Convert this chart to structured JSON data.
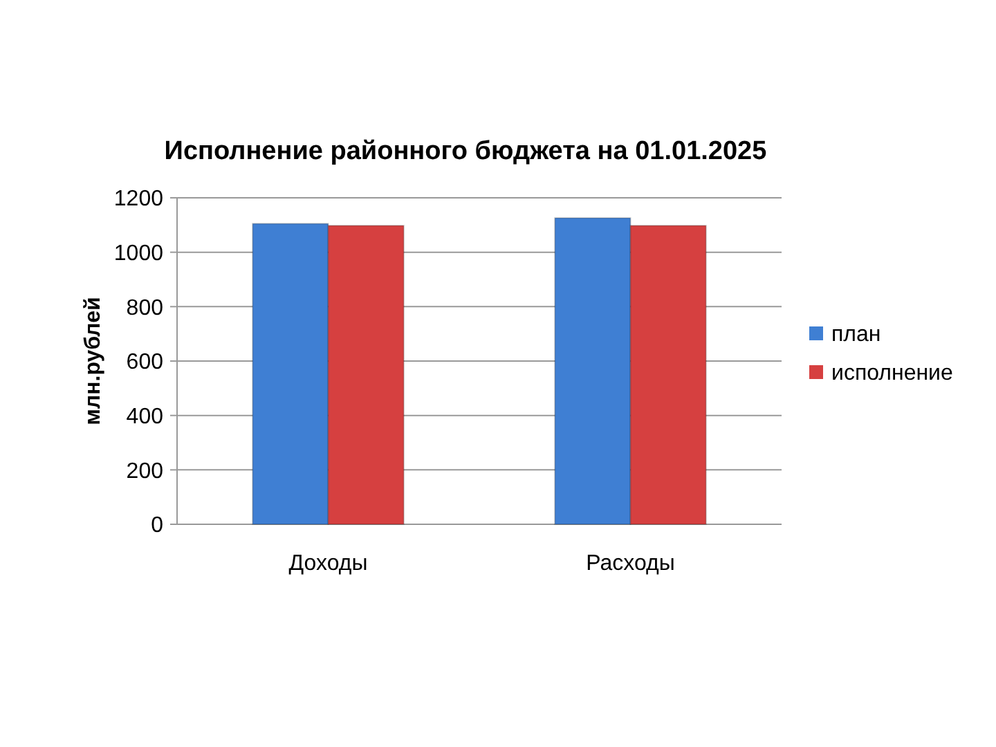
{
  "chart_data": {
    "type": "bar",
    "title": "Исполнение районного бюджета на 01.01.2025",
    "ylabel": "млн.рублей",
    "categories": [
      "Доходы",
      "Расходы"
    ],
    "series": [
      {
        "name": "план",
        "color": "#3f7fd3",
        "values": [
          1105,
          1126
        ]
      },
      {
        "name": "исполнение",
        "color": "#d64040",
        "values": [
          1098,
          1098
        ]
      }
    ],
    "ylim": [
      0,
      1200
    ],
    "yticks": [
      0,
      200,
      400,
      600,
      800,
      1000,
      1200
    ],
    "grid": "y",
    "legend": "right"
  }
}
